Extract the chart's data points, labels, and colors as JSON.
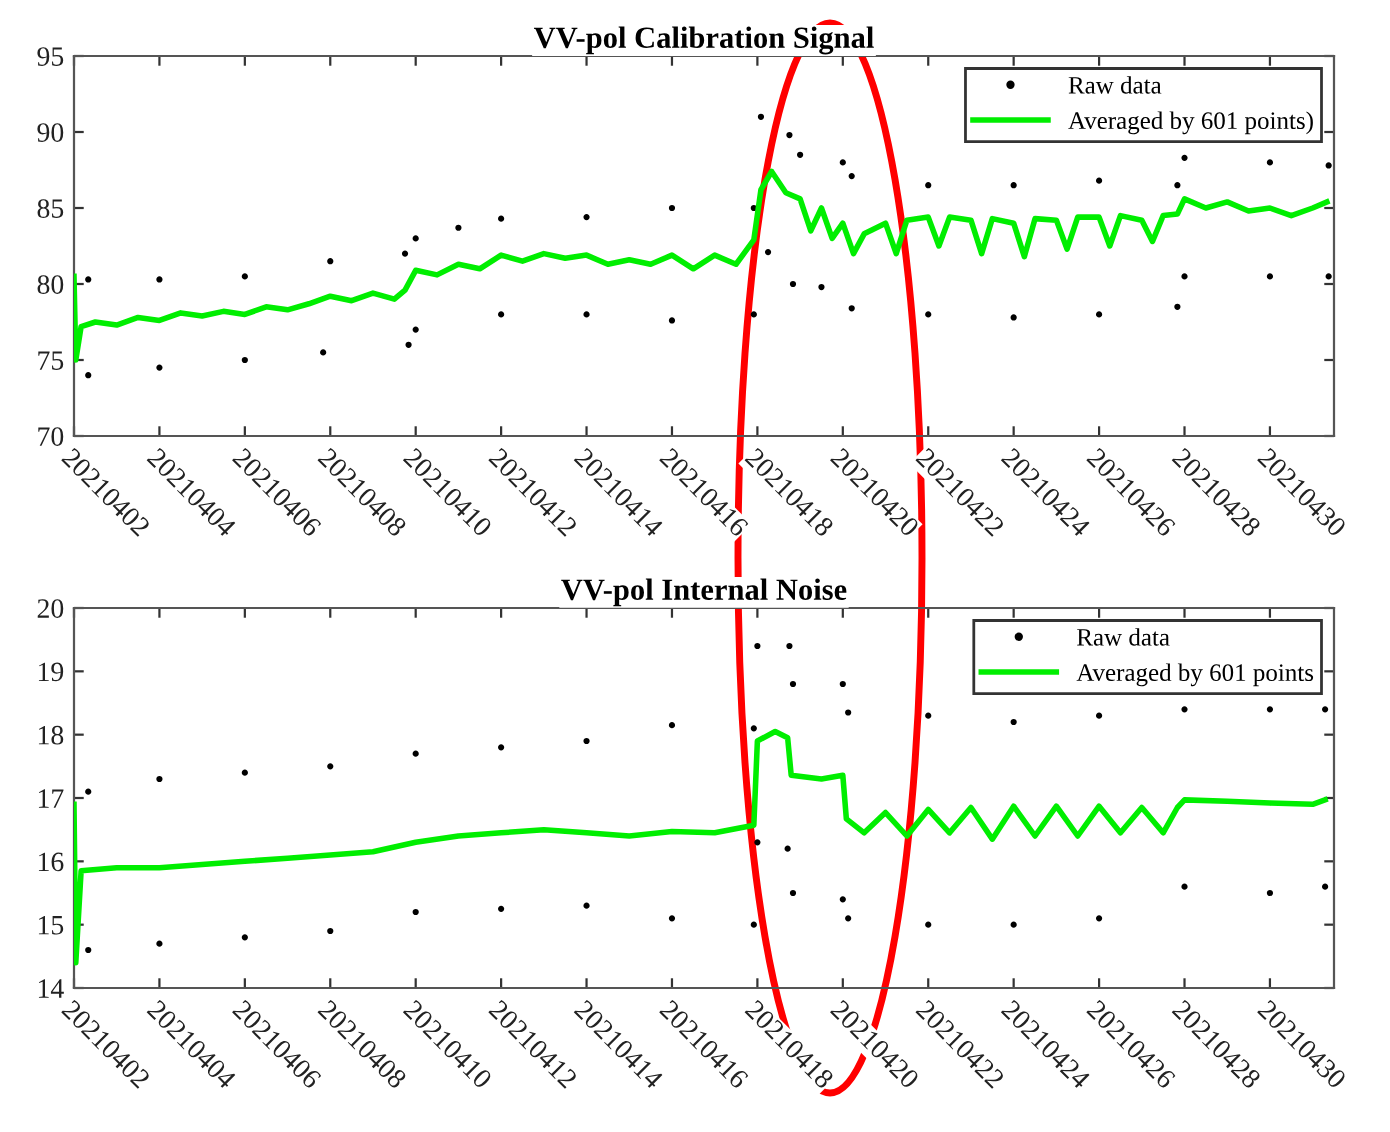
{
  "chart_data": [
    {
      "type": "line",
      "title": "VV-pol Calibration Signal",
      "legend": "top right",
      "grid": false,
      "xlim": [
        "2021-04-02T00:00",
        "2021-05-01T12:00"
      ],
      "xticks": [
        {
          "value": "2021-04-02",
          "label": "20210402"
        },
        {
          "value": "2021-04-04",
          "label": "20210404"
        },
        {
          "value": "2021-04-06",
          "label": "20210406"
        },
        {
          "value": "2021-04-08",
          "label": "20210408"
        },
        {
          "value": "2021-04-10",
          "label": "20210410"
        },
        {
          "value": "2021-04-12",
          "label": "20210412"
        },
        {
          "value": "2021-04-14",
          "label": "20210414"
        },
        {
          "value": "2021-04-16",
          "label": "20210416"
        },
        {
          "value": "2021-04-18",
          "label": "20210418"
        },
        {
          "value": "2021-04-20",
          "label": "20210420"
        },
        {
          "value": "2021-04-22",
          "label": "20210422"
        },
        {
          "value": "2021-04-24",
          "label": "20210424"
        },
        {
          "value": "2021-04-26",
          "label": "20210426"
        },
        {
          "value": "2021-04-28",
          "label": "20210428"
        },
        {
          "value": "2021-04-30",
          "label": "20210430"
        }
      ],
      "ylim": [
        70,
        95
      ],
      "yticks": [
        70,
        75,
        80,
        85,
        90,
        95
      ],
      "series": [
        {
          "name": "Raw data",
          "type": "scatter",
          "marker": "circle",
          "color": "#000000",
          "x": [
            "2021-04-02T08:00",
            "2021-04-04",
            "2021-04-06",
            "2021-04-08",
            "2021-04-09T18:00",
            "2021-04-10",
            "2021-04-11",
            "2021-04-12",
            "2021-04-14",
            "2021-04-16",
            "2021-04-17T22:00",
            "2021-04-18T02:00",
            "2021-04-18T18:00",
            "2021-04-19",
            "2021-04-20",
            "2021-04-20T05:00",
            "2021-04-22",
            "2021-04-24",
            "2021-04-26",
            "2021-04-27T20:00",
            "2021-04-28",
            "2021-04-30",
            "2021-05-01T09:00",
            "2021-04-02T08:00",
            "2021-04-04",
            "2021-04-06",
            "2021-04-07T20:00",
            "2021-04-09T20:00",
            "2021-04-10",
            "2021-04-12",
            "2021-04-14",
            "2021-04-16",
            "2021-04-17T22:00",
            "2021-04-18T06:00",
            "2021-04-18T20:00",
            "2021-04-19T12:00",
            "2021-04-20T05:00",
            "2021-04-22",
            "2021-04-24",
            "2021-04-26",
            "2021-04-27T20:00",
            "2021-04-28",
            "2021-04-30",
            "2021-05-01T09:00"
          ],
          "values": [
            80.3,
            80.3,
            80.5,
            81.5,
            82.0,
            83.0,
            83.7,
            84.3,
            84.4,
            85.0,
            85.0,
            91.0,
            89.8,
            88.5,
            88.0,
            87.1,
            86.5,
            86.5,
            86.8,
            86.5,
            88.3,
            88.0,
            87.8,
            74.0,
            74.5,
            75.0,
            75.5,
            76.0,
            77.0,
            78.0,
            78.0,
            77.6,
            78.0,
            82.1,
            80.0,
            79.8,
            78.4,
            78.0,
            77.8,
            78.0,
            78.5,
            80.5,
            80.5,
            80.5
          ]
        },
        {
          "name": "Averaged by 601 points)",
          "type": "line",
          "marker": "none",
          "line_style": "solid",
          "color": "#00ee00",
          "x": [
            "2021-04-02T00:00",
            "2021-04-02T01:00",
            "2021-04-02T04:00",
            "2021-04-02T12:00",
            "2021-04-03",
            "2021-04-03T12:00",
            "2021-04-04",
            "2021-04-04T12:00",
            "2021-04-05",
            "2021-04-05T12:00",
            "2021-04-06",
            "2021-04-06T12:00",
            "2021-04-07",
            "2021-04-07T12:00",
            "2021-04-08",
            "2021-04-08T12:00",
            "2021-04-09",
            "2021-04-09T12:00",
            "2021-04-09T18:00",
            "2021-04-10",
            "2021-04-10T12:00",
            "2021-04-11",
            "2021-04-11T12:00",
            "2021-04-12",
            "2021-04-12T12:00",
            "2021-04-13",
            "2021-04-13T12:00",
            "2021-04-14",
            "2021-04-14T12:00",
            "2021-04-15",
            "2021-04-15T12:00",
            "2021-04-16",
            "2021-04-16T12:00",
            "2021-04-17",
            "2021-04-17T12:00",
            "2021-04-17T22:00",
            "2021-04-18T02:00",
            "2021-04-18T08:00",
            "2021-04-18T16:00",
            "2021-04-19",
            "2021-04-19T06:00",
            "2021-04-19T12:00",
            "2021-04-19T18:00",
            "2021-04-20",
            "2021-04-20T06:00",
            "2021-04-20T12:00",
            "2021-04-21",
            "2021-04-21T06:00",
            "2021-04-21T12:00",
            "2021-04-22",
            "2021-04-22T06:00",
            "2021-04-22T12:00",
            "2021-04-23",
            "2021-04-23T06:00",
            "2021-04-23T12:00",
            "2021-04-24",
            "2021-04-24T06:00",
            "2021-04-24T12:00",
            "2021-04-25",
            "2021-04-25T06:00",
            "2021-04-25T12:00",
            "2021-04-26",
            "2021-04-26T06:00",
            "2021-04-26T12:00",
            "2021-04-27",
            "2021-04-27T06:00",
            "2021-04-27T12:00",
            "2021-04-27T20:00",
            "2021-04-28",
            "2021-04-28T12:00",
            "2021-04-29",
            "2021-04-29T12:00",
            "2021-04-30",
            "2021-04-30T12:00",
            "2021-05-01",
            "2021-05-01T08:00"
          ],
          "values": [
            80.5,
            75.0,
            77.2,
            77.5,
            77.3,
            77.8,
            77.6,
            78.1,
            77.9,
            78.2,
            78.0,
            78.5,
            78.3,
            78.7,
            79.2,
            78.9,
            79.4,
            79.0,
            79.6,
            80.9,
            80.6,
            81.3,
            81.0,
            81.9,
            81.5,
            82.0,
            81.7,
            81.9,
            81.3,
            81.6,
            81.3,
            81.9,
            81.0,
            81.9,
            81.3,
            82.9,
            86.2,
            87.4,
            86.0,
            85.6,
            83.5,
            85.0,
            83.0,
            84.0,
            82.0,
            83.3,
            84.0,
            82.0,
            84.2,
            84.4,
            82.5,
            84.4,
            84.2,
            82.0,
            84.3,
            84.0,
            81.8,
            84.3,
            84.2,
            82.3,
            84.4,
            84.4,
            82.5,
            84.5,
            84.2,
            82.8,
            84.5,
            84.6,
            85.6,
            85.0,
            85.4,
            84.8,
            85.0,
            84.5,
            85.0,
            85.4
          ]
        }
      ]
    },
    {
      "type": "line",
      "title": "VV-pol Internal Noise",
      "legend": "top right",
      "grid": false,
      "xlim": [
        "2021-04-02T00:00",
        "2021-05-01T12:00"
      ],
      "xticks": [
        {
          "value": "2021-04-02",
          "label": "20210402"
        },
        {
          "value": "2021-04-04",
          "label": "20210404"
        },
        {
          "value": "2021-04-06",
          "label": "20210406"
        },
        {
          "value": "2021-04-08",
          "label": "20210408"
        },
        {
          "value": "2021-04-10",
          "label": "20210410"
        },
        {
          "value": "2021-04-12",
          "label": "20210412"
        },
        {
          "value": "2021-04-14",
          "label": "20210414"
        },
        {
          "value": "2021-04-16",
          "label": "20210416"
        },
        {
          "value": "2021-04-18",
          "label": "20210418"
        },
        {
          "value": "2021-04-20",
          "label": "20210420"
        },
        {
          "value": "2021-04-22",
          "label": "20210422"
        },
        {
          "value": "2021-04-24",
          "label": "20210424"
        },
        {
          "value": "2021-04-26",
          "label": "20210426"
        },
        {
          "value": "2021-04-28",
          "label": "20210428"
        },
        {
          "value": "2021-04-30",
          "label": "20210430"
        }
      ],
      "ylim": [
        14,
        20
      ],
      "yticks": [
        14,
        15,
        16,
        17,
        18,
        19,
        20
      ],
      "series": [
        {
          "name": "Raw data",
          "type": "scatter",
          "marker": "circle",
          "color": "#000000",
          "x": [
            "2021-04-02T08:00",
            "2021-04-04",
            "2021-04-06",
            "2021-04-08",
            "2021-04-10",
            "2021-04-12",
            "2021-04-14",
            "2021-04-16",
            "2021-04-17T22:00",
            "2021-04-18T00:00",
            "2021-04-18T18:00",
            "2021-04-18T20:00",
            "2021-04-20",
            "2021-04-20T03:00",
            "2021-04-22",
            "2021-04-24",
            "2021-04-26",
            "2021-04-28",
            "2021-04-30",
            "2021-05-01T07:00",
            "2021-04-02T08:00",
            "2021-04-04",
            "2021-04-06",
            "2021-04-08",
            "2021-04-10",
            "2021-04-12",
            "2021-04-14",
            "2021-04-16",
            "2021-04-17T22:00",
            "2021-04-18T00:00",
            "2021-04-18T17:00",
            "2021-04-18T20:00",
            "2021-04-20",
            "2021-04-20T03:00",
            "2021-04-22",
            "2021-04-24",
            "2021-04-26",
            "2021-04-28",
            "2021-04-30",
            "2021-05-01T07:00"
          ],
          "values": [
            17.1,
            17.3,
            17.4,
            17.5,
            17.7,
            17.8,
            17.9,
            18.15,
            18.1,
            19.4,
            19.4,
            18.8,
            18.8,
            18.35,
            18.3,
            18.2,
            18.3,
            18.4,
            18.4,
            18.4,
            14.6,
            14.7,
            14.8,
            14.9,
            15.2,
            15.25,
            15.3,
            15.1,
            15.0,
            16.3,
            16.2,
            15.5,
            15.4,
            15.1,
            15.0,
            15.0,
            15.1,
            15.6,
            15.5,
            15.6
          ]
        },
        {
          "name": "Averaged by 601 points",
          "type": "line",
          "marker": "none",
          "line_style": "solid",
          "color": "#00ee00",
          "x": [
            "2021-04-02T00:00",
            "2021-04-02T01:00",
            "2021-04-02T04:00",
            "2021-04-03",
            "2021-04-04",
            "2021-04-05",
            "2021-04-06",
            "2021-04-07",
            "2021-04-08",
            "2021-04-09",
            "2021-04-10",
            "2021-04-11",
            "2021-04-12",
            "2021-04-13",
            "2021-04-14",
            "2021-04-15",
            "2021-04-16",
            "2021-04-17",
            "2021-04-17T22:00",
            "2021-04-18T00:00",
            "2021-04-18T10:00",
            "2021-04-18T17:00",
            "2021-04-18T19:00",
            "2021-04-19T12:00",
            "2021-04-20",
            "2021-04-20T02:00",
            "2021-04-20T12:00",
            "2021-04-21",
            "2021-04-21T12:00",
            "2021-04-22",
            "2021-04-22T12:00",
            "2021-04-23",
            "2021-04-23T12:00",
            "2021-04-24",
            "2021-04-24T12:00",
            "2021-04-25",
            "2021-04-25T12:00",
            "2021-04-26",
            "2021-04-26T12:00",
            "2021-04-27",
            "2021-04-27T12:00",
            "2021-04-27T20:00",
            "2021-04-28",
            "2021-04-29",
            "2021-04-30",
            "2021-05-01",
            "2021-05-01T07:00"
          ],
          "values": [
            16.9,
            14.4,
            15.85,
            15.9,
            15.9,
            15.95,
            16.0,
            16.05,
            16.1,
            16.15,
            16.3,
            16.4,
            16.45,
            16.5,
            16.45,
            16.4,
            16.47,
            16.45,
            16.57,
            17.9,
            18.05,
            17.95,
            17.36,
            17.3,
            17.36,
            16.67,
            16.45,
            16.77,
            16.4,
            16.82,
            16.45,
            16.85,
            16.35,
            16.87,
            16.4,
            16.87,
            16.4,
            16.87,
            16.45,
            16.85,
            16.45,
            16.85,
            16.97,
            16.95,
            16.92,
            16.9,
            16.97
          ]
        }
      ]
    }
  ]
}
